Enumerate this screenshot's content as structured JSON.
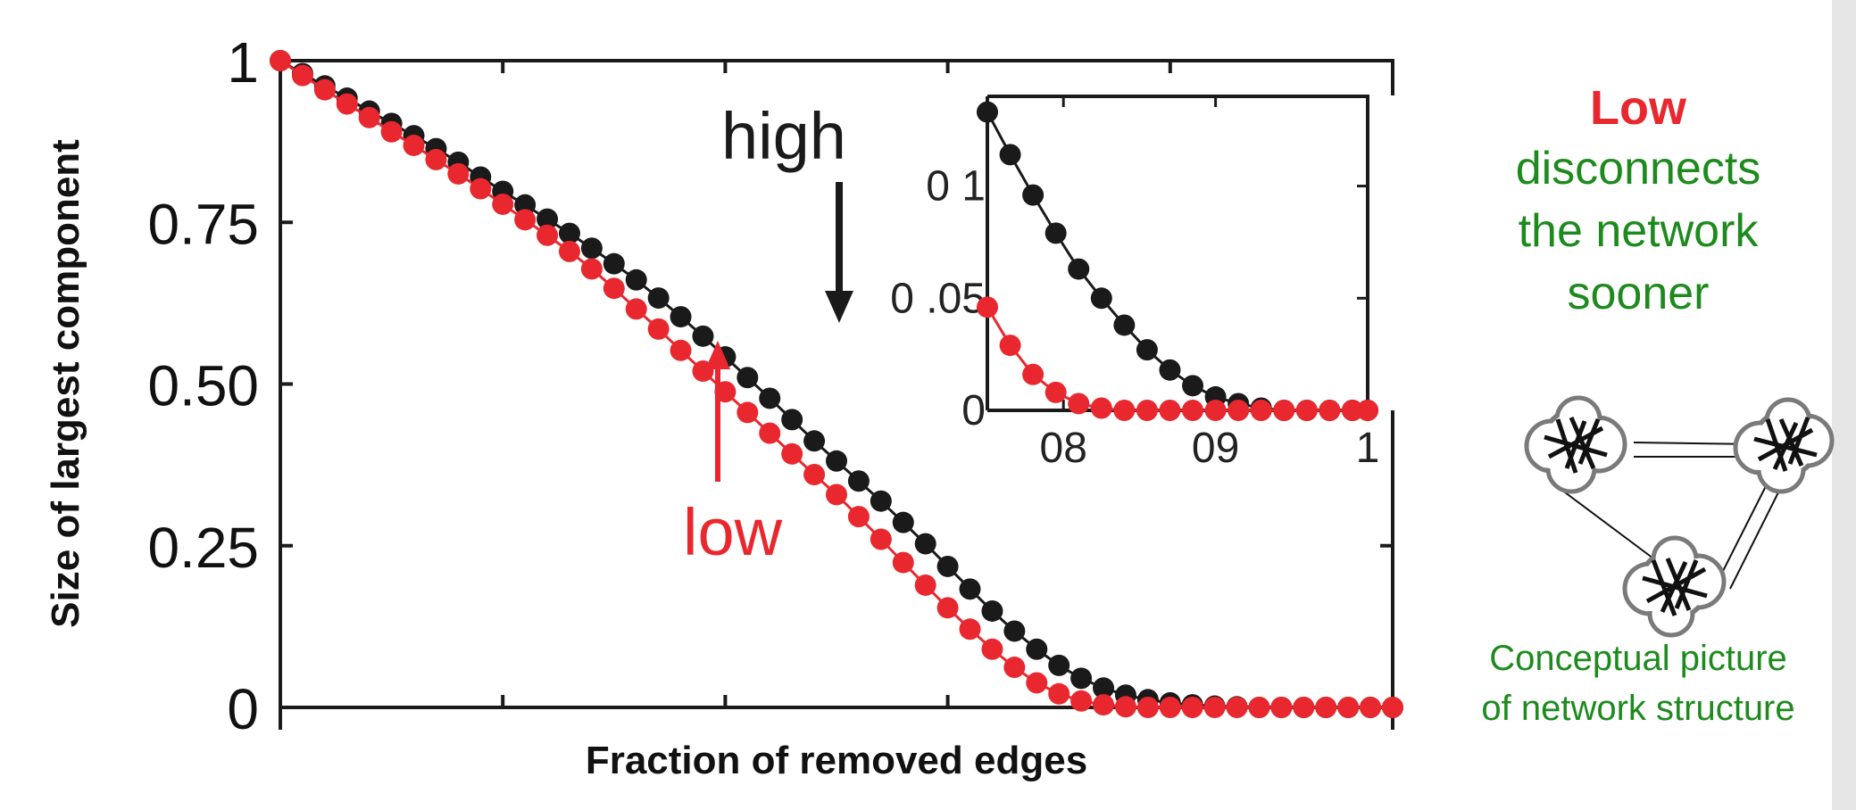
{
  "chart_data": {
    "type": "scatter",
    "xlabel": "Fraction of removed edges",
    "ylabel": "Size of largest component",
    "xlim": [
      0,
      1
    ],
    "ylim": [
      0,
      1
    ],
    "yticks": [
      "0",
      "0.25",
      "0.50",
      "0.75",
      "1"
    ],
    "ytick_values": [
      0,
      0.25,
      0.5,
      0.75,
      1
    ],
    "xtick_values": [
      0,
      0.2,
      0.4,
      0.6,
      0.8,
      1
    ],
    "series": [
      {
        "name": "high",
        "color": "#1a1a1a",
        "x": [
          0.0,
          0.02,
          0.04,
          0.06,
          0.08,
          0.1,
          0.12,
          0.14,
          0.16,
          0.18,
          0.2,
          0.22,
          0.24,
          0.26,
          0.28,
          0.3,
          0.32,
          0.34,
          0.36,
          0.38,
          0.4,
          0.42,
          0.44,
          0.46,
          0.48,
          0.5,
          0.52,
          0.54,
          0.56,
          0.58,
          0.6,
          0.62,
          0.64,
          0.66,
          0.68,
          0.7,
          0.72,
          0.74,
          0.76,
          0.78,
          0.8,
          0.82,
          0.84,
          0.86,
          0.88,
          0.9,
          0.92,
          0.94,
          0.96,
          0.98,
          1.0
        ],
        "y": [
          1.0,
          0.98,
          0.961,
          0.942,
          0.922,
          0.903,
          0.884,
          0.864,
          0.843,
          0.82,
          0.798,
          0.777,
          0.755,
          0.733,
          0.71,
          0.686,
          0.661,
          0.633,
          0.604,
          0.574,
          0.542,
          0.51,
          0.478,
          0.445,
          0.412,
          0.381,
          0.35,
          0.319,
          0.286,
          0.253,
          0.218,
          0.183,
          0.149,
          0.118,
          0.09,
          0.065,
          0.045,
          0.03,
          0.019,
          0.012,
          0.007,
          0.004,
          0.002,
          0.001,
          0.0,
          0.0,
          0.0,
          0.0,
          0.0,
          0.0,
          0.0
        ]
      },
      {
        "name": "low",
        "color": "#e8282e",
        "x": [
          0.0,
          0.02,
          0.04,
          0.06,
          0.08,
          0.1,
          0.12,
          0.14,
          0.16,
          0.18,
          0.2,
          0.22,
          0.24,
          0.26,
          0.28,
          0.3,
          0.32,
          0.34,
          0.36,
          0.38,
          0.4,
          0.42,
          0.44,
          0.46,
          0.48,
          0.5,
          0.52,
          0.54,
          0.56,
          0.58,
          0.6,
          0.62,
          0.64,
          0.66,
          0.68,
          0.7,
          0.72,
          0.74,
          0.76,
          0.78,
          0.8,
          0.82,
          0.84,
          0.86,
          0.88,
          0.9,
          0.92,
          0.94,
          0.96,
          0.98,
          1.0
        ],
        "y": [
          1.0,
          0.977,
          0.955,
          0.933,
          0.912,
          0.89,
          0.869,
          0.847,
          0.825,
          0.802,
          0.778,
          0.754,
          0.73,
          0.705,
          0.678,
          0.648,
          0.616,
          0.585,
          0.552,
          0.52,
          0.488,
          0.456,
          0.424,
          0.392,
          0.36,
          0.329,
          0.295,
          0.26,
          0.224,
          0.189,
          0.154,
          0.121,
          0.09,
          0.062,
          0.038,
          0.021,
          0.01,
          0.004,
          0.001,
          0.0,
          0.0,
          0.0,
          0.0,
          0.0,
          0.0,
          0.0,
          0.0,
          0.0,
          0.0,
          0.0,
          0.0
        ]
      }
    ],
    "annotations": [
      {
        "text": "high",
        "color": "#1a1a1a",
        "arrow": "down",
        "points_to": [
          0.5,
          0.58
        ]
      },
      {
        "text": "low",
        "color": "#e8282e",
        "arrow": "up",
        "points_to": [
          0.4,
          0.56
        ]
      }
    ],
    "inset": {
      "xlim": [
        0.75,
        1.0
      ],
      "ylim": [
        0,
        0.14
      ],
      "xticks": [
        "08",
        "09",
        "1"
      ],
      "xtick_values": [
        0.8,
        0.9,
        1.0
      ],
      "yticks": [
        "0",
        "0 .05",
        "0 1"
      ],
      "ytick_values": [
        0,
        0.05,
        0.1
      ],
      "series": [
        {
          "name": "high",
          "color": "#1a1a1a",
          "x": [
            0.75,
            0.765,
            0.78,
            0.795,
            0.81,
            0.825,
            0.84,
            0.855,
            0.87,
            0.885,
            0.9,
            0.915,
            0.93,
            0.945,
            0.96,
            0.975,
            0.99,
            1.0
          ],
          "y": [
            0.133,
            0.114,
            0.096,
            0.079,
            0.063,
            0.05,
            0.038,
            0.027,
            0.018,
            0.011,
            0.006,
            0.003,
            0.001,
            0.0,
            0.0,
            0.0,
            0.0,
            0.0
          ]
        },
        {
          "name": "low",
          "color": "#e8282e",
          "x": [
            0.75,
            0.765,
            0.78,
            0.795,
            0.81,
            0.825,
            0.84,
            0.855,
            0.87,
            0.885,
            0.9,
            0.915,
            0.93,
            0.945,
            0.96,
            0.975,
            0.99,
            1.0
          ],
          "y": [
            0.046,
            0.029,
            0.016,
            0.008,
            0.003,
            0.001,
            0.0,
            0.0,
            0.0,
            0.0,
            0.0,
            0.0,
            0.0,
            0.0,
            0.0,
            0.0,
            0.0,
            0.0
          ]
        }
      ]
    }
  },
  "sidebar": {
    "headline_strong": "Low",
    "headline_rest": [
      "disconnects",
      "the network",
      "sooner"
    ],
    "caption": [
      "Conceptual picture",
      "of network structure"
    ],
    "colors": {
      "strong": "#e8282e",
      "text": "#1e8a1e"
    }
  }
}
